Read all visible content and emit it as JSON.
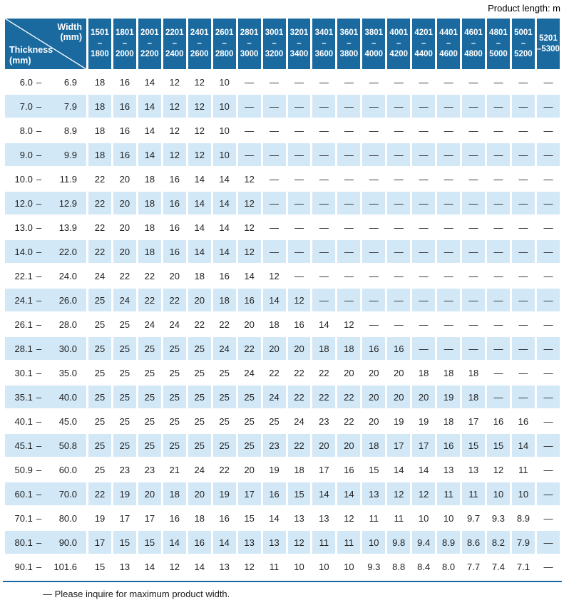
{
  "top_note": "Product length: m",
  "corner": {
    "top_label": "Width",
    "top_unit": "(mm)",
    "bottom_label": "Thickness",
    "bottom_unit": "(mm)"
  },
  "range_separator": "–",
  "footnote": "— Please inquire for maximum product width.",
  "colors": {
    "header_blue": "#1a6aa0",
    "row_light_blue": "#d2e8f7",
    "rule_blue": "#1a6aa0"
  },
  "table": {
    "columns": [
      {
        "line1": "1501",
        "line2": "–1800"
      },
      {
        "line1": "1801",
        "line2": "–2000"
      },
      {
        "line1": "2001",
        "line2": "–2200"
      },
      {
        "line1": "2201",
        "line2": "–2400"
      },
      {
        "line1": "2401",
        "line2": "–2600"
      },
      {
        "line1": "2601",
        "line2": "–2800"
      },
      {
        "line1": "2801",
        "line2": "–3000"
      },
      {
        "line1": "3001",
        "line2": "–3200"
      },
      {
        "line1": "3201",
        "line2": "–3400"
      },
      {
        "line1": "3401",
        "line2": "–3600"
      },
      {
        "line1": "3601",
        "line2": "–3800"
      },
      {
        "line1": "3801",
        "line2": "–4000"
      },
      {
        "line1": "4001",
        "line2": "–4200"
      },
      {
        "line1": "4201",
        "line2": "–4400"
      },
      {
        "line1": "4401",
        "line2": "–4600"
      },
      {
        "line1": "4601",
        "line2": "–4800"
      },
      {
        "line1": "4801",
        "line2": "–5000"
      },
      {
        "line1": "5001",
        "line2": "–5200"
      },
      {
        "line1": "5201",
        "line2": "–5300"
      }
    ],
    "rows": [
      {
        "from": "6.0",
        "to": "6.9",
        "values": [
          "18",
          "16",
          "14",
          "12",
          "12",
          "10",
          "—",
          "—",
          "—",
          "—",
          "—",
          "—",
          "—",
          "—",
          "—",
          "—",
          "—",
          "—",
          "—"
        ]
      },
      {
        "from": "7.0",
        "to": "7.9",
        "values": [
          "18",
          "16",
          "14",
          "12",
          "12",
          "10",
          "—",
          "—",
          "—",
          "—",
          "—",
          "—",
          "—",
          "—",
          "—",
          "—",
          "—",
          "—",
          "—"
        ]
      },
      {
        "from": "8.0",
        "to": "8.9",
        "values": [
          "18",
          "16",
          "14",
          "12",
          "12",
          "10",
          "—",
          "—",
          "—",
          "—",
          "—",
          "—",
          "—",
          "—",
          "—",
          "—",
          "—",
          "—",
          "—"
        ]
      },
      {
        "from": "9.0",
        "to": "9.9",
        "values": [
          "18",
          "16",
          "14",
          "12",
          "12",
          "10",
          "—",
          "—",
          "—",
          "—",
          "—",
          "—",
          "—",
          "—",
          "—",
          "—",
          "—",
          "—",
          "—"
        ]
      },
      {
        "from": "10.0",
        "to": "11.9",
        "values": [
          "22",
          "20",
          "18",
          "16",
          "14",
          "14",
          "12",
          "—",
          "—",
          "—",
          "—",
          "—",
          "—",
          "—",
          "—",
          "—",
          "—",
          "—",
          "—"
        ]
      },
      {
        "from": "12.0",
        "to": "12.9",
        "values": [
          "22",
          "20",
          "18",
          "16",
          "14",
          "14",
          "12",
          "—",
          "—",
          "—",
          "—",
          "—",
          "—",
          "—",
          "—",
          "—",
          "—",
          "—",
          "—"
        ]
      },
      {
        "from": "13.0",
        "to": "13.9",
        "values": [
          "22",
          "20",
          "18",
          "16",
          "14",
          "14",
          "12",
          "—",
          "—",
          "—",
          "—",
          "—",
          "—",
          "—",
          "—",
          "—",
          "—",
          "—",
          "—"
        ]
      },
      {
        "from": "14.0",
        "to": "22.0",
        "values": [
          "22",
          "20",
          "18",
          "16",
          "14",
          "14",
          "12",
          "—",
          "—",
          "—",
          "—",
          "—",
          "—",
          "—",
          "—",
          "—",
          "—",
          "—",
          "—"
        ]
      },
      {
        "from": "22.1",
        "to": "24.0",
        "values": [
          "24",
          "22",
          "22",
          "20",
          "18",
          "16",
          "14",
          "12",
          "—",
          "—",
          "—",
          "—",
          "—",
          "—",
          "—",
          "—",
          "—",
          "—",
          "—"
        ]
      },
      {
        "from": "24.1",
        "to": "26.0",
        "values": [
          "25",
          "24",
          "22",
          "22",
          "20",
          "18",
          "16",
          "14",
          "12",
          "—",
          "—",
          "—",
          "—",
          "—",
          "—",
          "—",
          "—",
          "—",
          "—"
        ]
      },
      {
        "from": "26.1",
        "to": "28.0",
        "values": [
          "25",
          "25",
          "24",
          "24",
          "22",
          "22",
          "20",
          "18",
          "16",
          "14",
          "12",
          "—",
          "—",
          "—",
          "—",
          "—",
          "—",
          "—",
          "—"
        ]
      },
      {
        "from": "28.1",
        "to": "30.0",
        "values": [
          "25",
          "25",
          "25",
          "25",
          "25",
          "24",
          "22",
          "20",
          "20",
          "18",
          "18",
          "16",
          "16",
          "—",
          "—",
          "—",
          "—",
          "—",
          "—"
        ]
      },
      {
        "from": "30.1",
        "to": "35.0",
        "values": [
          "25",
          "25",
          "25",
          "25",
          "25",
          "25",
          "24",
          "22",
          "22",
          "22",
          "20",
          "20",
          "20",
          "18",
          "18",
          "18",
          "—",
          "—",
          "—"
        ]
      },
      {
        "from": "35.1",
        "to": "40.0",
        "values": [
          "25",
          "25",
          "25",
          "25",
          "25",
          "25",
          "25",
          "24",
          "22",
          "22",
          "22",
          "20",
          "20",
          "20",
          "19",
          "18",
          "—",
          "—",
          "—"
        ]
      },
      {
        "from": "40.1",
        "to": "45.0",
        "values": [
          "25",
          "25",
          "25",
          "25",
          "25",
          "25",
          "25",
          "25",
          "24",
          "23",
          "22",
          "20",
          "19",
          "19",
          "18",
          "17",
          "16",
          "16",
          "—"
        ]
      },
      {
        "from": "45.1",
        "to": "50.8",
        "values": [
          "25",
          "25",
          "25",
          "25",
          "25",
          "25",
          "25",
          "23",
          "22",
          "20",
          "20",
          "18",
          "17",
          "17",
          "16",
          "15",
          "15",
          "14",
          "—"
        ]
      },
      {
        "from": "50.9",
        "to": "60.0",
        "values": [
          "25",
          "23",
          "23",
          "21",
          "24",
          "22",
          "20",
          "19",
          "18",
          "17",
          "16",
          "15",
          "14",
          "14",
          "13",
          "13",
          "12",
          "11",
          "—"
        ]
      },
      {
        "from": "60.1",
        "to": "70.0",
        "values": [
          "22",
          "19",
          "20",
          "18",
          "20",
          "19",
          "17",
          "16",
          "15",
          "14",
          "14",
          "13",
          "12",
          "12",
          "11",
          "11",
          "10",
          "10",
          "—"
        ]
      },
      {
        "from": "70.1",
        "to": "80.0",
        "values": [
          "19",
          "17",
          "17",
          "16",
          "18",
          "16",
          "15",
          "14",
          "13",
          "13",
          "12",
          "11",
          "11",
          "10",
          "10",
          "9.7",
          "9.3",
          "8.9",
          "—"
        ]
      },
      {
        "from": "80.1",
        "to": "90.0",
        "values": [
          "17",
          "15",
          "15",
          "14",
          "16",
          "14",
          "13",
          "13",
          "12",
          "11",
          "11",
          "10",
          "9.8",
          "9.4",
          "8.9",
          "8.6",
          "8.2",
          "7.9",
          "—"
        ]
      },
      {
        "from": "90.1",
        "to": "101.6",
        "values": [
          "15",
          "13",
          "14",
          "12",
          "14",
          "13",
          "12",
          "11",
          "10",
          "10",
          "10",
          "9.3",
          "8.8",
          "8.4",
          "8.0",
          "7.7",
          "7.4",
          "7.1",
          "—"
        ]
      }
    ]
  }
}
